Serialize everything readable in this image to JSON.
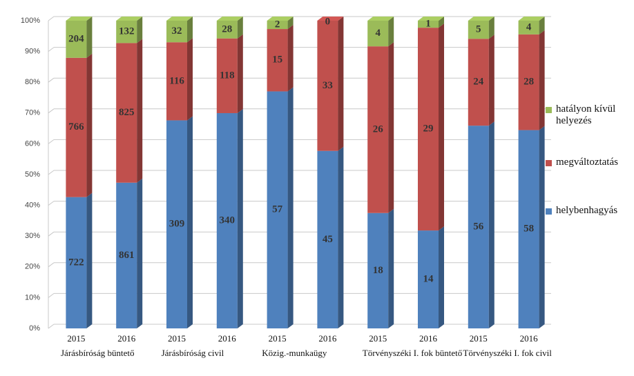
{
  "chart_data": {
    "type": "bar",
    "stack": "percent",
    "categories": [
      "2015",
      "2016",
      "2015",
      "2016",
      "2015",
      "2016",
      "2015",
      "2016",
      "2015",
      "2016"
    ],
    "groups": [
      "Járásbíróság büntető",
      "Járásbíróság civil",
      "Közig.-munkaügy",
      "Törvényszéki I. fok büntető",
      "Törvényszéki I. fok civil"
    ],
    "series": [
      {
        "name": "helybenhagyás",
        "color": "#4f81bd",
        "values": [
          722,
          861,
          309,
          340,
          57,
          45,
          18,
          14,
          56,
          58
        ]
      },
      {
        "name": "megváltoztatás",
        "color": "#c0504d",
        "values": [
          766,
          825,
          116,
          118,
          15,
          33,
          26,
          29,
          24,
          28
        ]
      },
      {
        "name": "hatályon kívül helyezés",
        "color": "#9bbb59",
        "values": [
          204,
          132,
          32,
          28,
          2,
          0,
          4,
          1,
          5,
          4
        ]
      }
    ],
    "ylim": [
      0,
      100
    ],
    "yticks": [
      {
        "value": 0,
        "label": "0%"
      },
      {
        "value": 10,
        "label": "10%"
      },
      {
        "value": 20,
        "label": "20%"
      },
      {
        "value": 30,
        "label": "30%"
      },
      {
        "value": 40,
        "label": "40%"
      },
      {
        "value": 50,
        "label": "50%"
      },
      {
        "value": 60,
        "label": "60%"
      },
      {
        "value": 70,
        "label": "70%"
      },
      {
        "value": 80,
        "label": "80%"
      },
      {
        "value": 90,
        "label": "90%"
      },
      {
        "value": 100,
        "label": "100%"
      }
    ],
    "grid": true,
    "legend": "right"
  }
}
